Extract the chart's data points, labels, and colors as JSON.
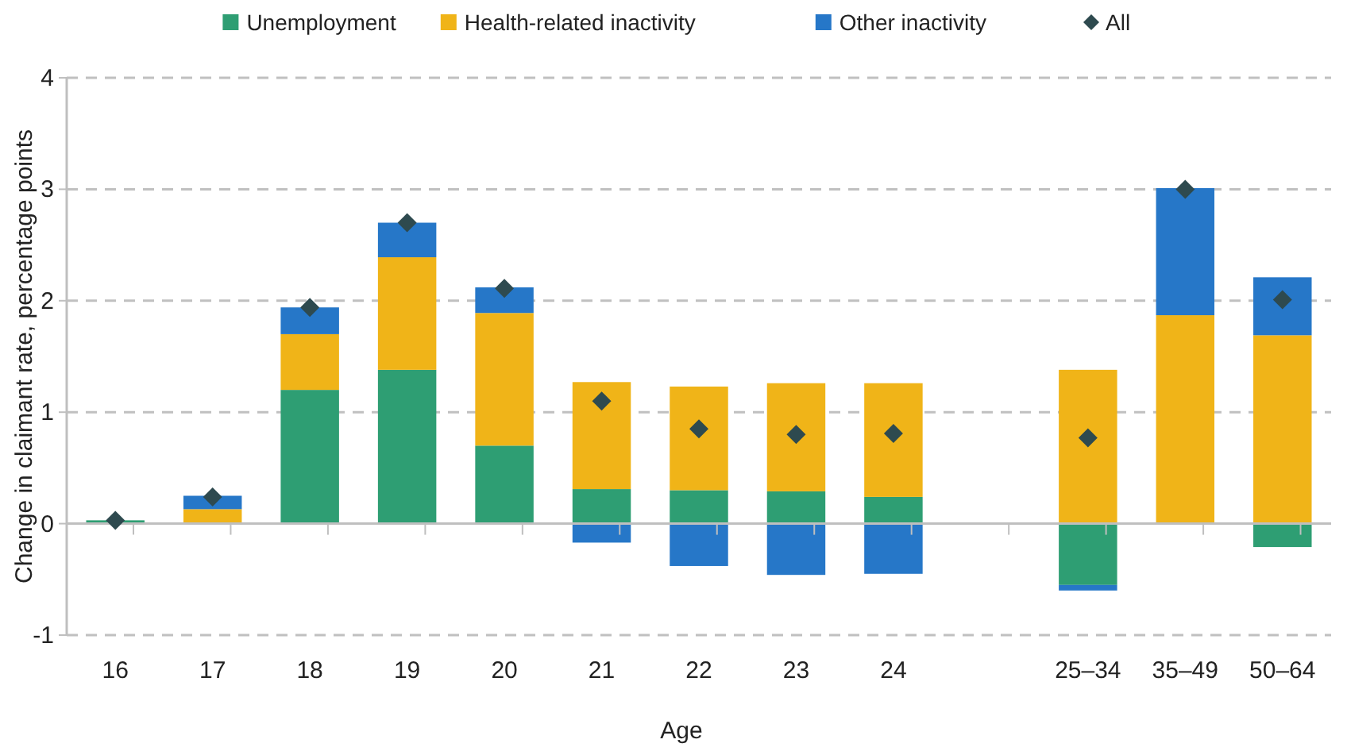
{
  "chart_data": {
    "type": "bar",
    "stacked": true,
    "xlabel": "Age",
    "ylabel": "Change in claimant rate, percentage points",
    "categories": [
      "16",
      "17",
      "18",
      "19",
      "20",
      "21",
      "22",
      "23",
      "24",
      null,
      "25–34",
      "35–49",
      "50–64"
    ],
    "series": [
      {
        "name": "Unemployment",
        "color": "#2e9e73",
        "values": [
          0.03,
          0,
          1.2,
          1.38,
          0.7,
          0.31,
          0.3,
          0.29,
          0.24,
          null,
          -0.55,
          0,
          -0.21
        ]
      },
      {
        "name": "Health-related inactivity",
        "color": "#f0b418",
        "values": [
          null,
          0.13,
          0.5,
          1.01,
          1.19,
          0.96,
          0.93,
          0.97,
          1.02,
          null,
          1.38,
          1.87,
          1.69
        ]
      },
      {
        "name": "Other inactivity",
        "color": "#2677c8",
        "values": [
          null,
          0.12,
          0.24,
          0.31,
          0.23,
          -0.17,
          -0.38,
          -0.46,
          -0.45,
          null,
          -0.05,
          1.14,
          0.52
        ]
      },
      {
        "name": "All",
        "type": "scatter",
        "marker": "diamond",
        "color": "#2e4a4f",
        "values": [
          0.03,
          0.24,
          1.94,
          2.7,
          2.11,
          1.1,
          0.85,
          0.8,
          0.81,
          null,
          0.77,
          3.0,
          2.01
        ]
      }
    ],
    "ylim": [
      -1,
      4
    ],
    "yticks": [
      -1,
      0,
      1,
      2,
      3,
      4
    ],
    "grid": "y",
    "legend": "top"
  }
}
